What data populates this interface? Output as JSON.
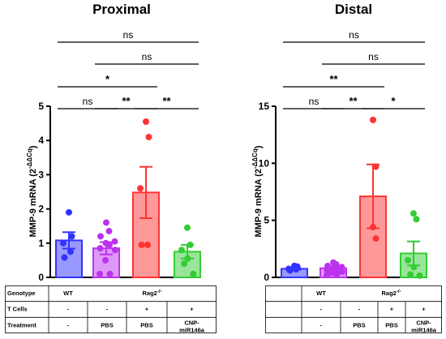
{
  "chart_data": [
    {
      "type": "bar",
      "title": "Proximal",
      "ylabel": "MMP-9 mRNA (2-ΔΔCq)",
      "ylim": [
        0,
        5
      ],
      "yticks": [
        0,
        1,
        2,
        3,
        4,
        5
      ],
      "categories": [
        "WT",
        "Rag2-/- PBS",
        "Rag2-/- T cells + PBS",
        "Rag2-/- T cells + CNP-miR146a"
      ],
      "means": [
        1.08,
        0.85,
        2.48,
        0.75
      ],
      "sem": [
        0.24,
        0.18,
        0.75,
        0.2
      ],
      "colors": [
        "#3333ff",
        "#bb33ee",
        "#ff3333",
        "#33cc33"
      ],
      "fill_colors": [
        "#9999ff",
        "#dd99f5",
        "#ff9999",
        "#99e599"
      ],
      "points": [
        [
          1.9,
          1.2,
          1.0,
          0.75,
          0.58
        ],
        [
          1.6,
          1.35,
          1.2,
          1.05,
          1.0,
          0.95,
          0.85,
          0.8,
          0.5,
          0.1,
          0.1
        ],
        [
          4.55,
          4.1,
          2.6,
          0.95,
          0.95
        ],
        [
          1.45,
          0.95,
          0.8,
          0.55,
          0.4,
          0.1
        ]
      ],
      "comparisons": [
        {
          "from": 0,
          "to": 1,
          "label": "ns"
        },
        {
          "from": 1,
          "to": 2,
          "label": "**"
        },
        {
          "from": 2,
          "to": 3,
          "label": "**"
        },
        {
          "from": 0,
          "to": 2,
          "label": "*"
        },
        {
          "from": 1,
          "to": 3,
          "label": "ns"
        },
        {
          "from": 0,
          "to": 3,
          "label": "ns"
        }
      ]
    },
    {
      "type": "bar",
      "title": "Distal",
      "ylabel": "MMP-9 mRNA (2-ΔΔCq)",
      "ylim": [
        0,
        15
      ],
      "yticks": [
        0,
        5,
        10,
        15
      ],
      "categories": [
        "WT",
        "Rag2-/- PBS",
        "Rag2-/- T cells + PBS",
        "Rag2-/- T cells + CNP-miR146a"
      ],
      "means": [
        0.75,
        0.8,
        7.1,
        2.1
      ],
      "sem": [
        0.1,
        0.15,
        2.8,
        1.05
      ],
      "colors": [
        "#3333ff",
        "#bb33ee",
        "#ff3333",
        "#33cc33"
      ],
      "fill_colors": [
        "#9999ff",
        "#dd99f5",
        "#ff9999",
        "#99e599"
      ],
      "points": [
        [
          1.0,
          0.95,
          0.75,
          0.7,
          0.6
        ],
        [
          1.3,
          1.15,
          1.0,
          0.9,
          0.8,
          0.75,
          0.6,
          0.5,
          0.4,
          0.3,
          0.2
        ],
        [
          13.8,
          9.7,
          4.4,
          3.4
        ],
        [
          5.6,
          5.1,
          1.5,
          0.9,
          0.25,
          0.15
        ]
      ],
      "comparisons": [
        {
          "from": 0,
          "to": 1,
          "label": "ns"
        },
        {
          "from": 1,
          "to": 2,
          "label": "**"
        },
        {
          "from": 2,
          "to": 3,
          "label": "*"
        },
        {
          "from": 0,
          "to": 2,
          "label": "**"
        },
        {
          "from": 1,
          "to": 3,
          "label": "ns"
        },
        {
          "from": 0,
          "to": 3,
          "label": "ns"
        }
      ]
    }
  ],
  "ylabel_parts": {
    "main": "MMP-9 mRNA (2",
    "sup": "-ΔΔCq",
    "close": ")"
  },
  "tables": [
    {
      "row_labels": [
        "Genotype",
        "T Cells",
        "Treatment"
      ],
      "genotype": [
        "WT",
        "Rag2"
      ],
      "genotype_sup": "-/-",
      "tcells": [
        "-",
        "-",
        "+",
        "+"
      ],
      "treatment": [
        "-",
        "PBS",
        "PBS",
        "CNP-",
        "miR146a"
      ]
    },
    {
      "row_labels": [],
      "genotype": [
        "WT",
        "Rag2"
      ],
      "genotype_sup": "-/-",
      "tcells": [
        "-",
        "-",
        "+",
        "+"
      ],
      "treatment": [
        "-",
        "PBS",
        "PBS",
        "CNP-",
        "miR146a"
      ]
    }
  ]
}
